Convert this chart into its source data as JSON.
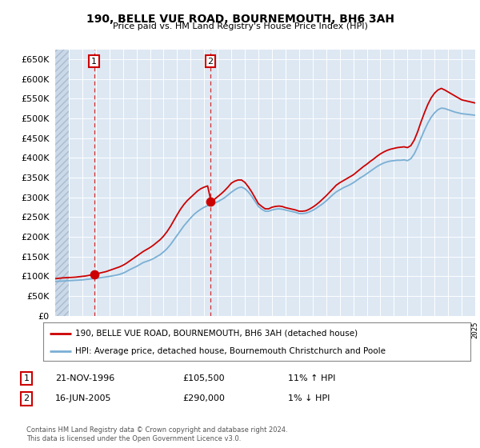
{
  "title": "190, BELLE VUE ROAD, BOURNEMOUTH, BH6 3AH",
  "subtitle": "Price paid vs. HM Land Registry's House Price Index (HPI)",
  "ylim": [
    0,
    675000
  ],
  "yticks": [
    0,
    50000,
    100000,
    150000,
    200000,
    250000,
    300000,
    350000,
    400000,
    450000,
    500000,
    550000,
    600000,
    650000
  ],
  "bg_color": "#dde8f3",
  "grid_color": "#ffffff",
  "red_line_color": "#cc0000",
  "blue_line_color": "#7aafd4",
  "sale1_year": 1996.88,
  "sale1_price": 105500,
  "sale1_label": "1",
  "sale1_date": "21-NOV-1996",
  "sale1_hpi": "11% ↑ HPI",
  "sale2_year": 2005.46,
  "sale2_price": 290000,
  "sale2_label": "2",
  "sale2_date": "16-JUN-2005",
  "sale2_hpi": "1% ↓ HPI",
  "legend1": "190, BELLE VUE ROAD, BOURNEMOUTH, BH6 3AH (detached house)",
  "legend2": "HPI: Average price, detached house, Bournemouth Christchurch and Poole",
  "footer": "Contains HM Land Registry data © Crown copyright and database right 2024.\nThis data is licensed under the Open Government Licence v3.0.",
  "hpi_years": [
    1994.0,
    1994.25,
    1994.5,
    1994.75,
    1995.0,
    1995.25,
    1995.5,
    1995.75,
    1996.0,
    1996.25,
    1996.5,
    1996.75,
    1997.0,
    1997.25,
    1997.5,
    1997.75,
    1998.0,
    1998.25,
    1998.5,
    1998.75,
    1999.0,
    1999.25,
    1999.5,
    1999.75,
    2000.0,
    2000.25,
    2000.5,
    2000.75,
    2001.0,
    2001.25,
    2001.5,
    2001.75,
    2002.0,
    2002.25,
    2002.5,
    2002.75,
    2003.0,
    2003.25,
    2003.5,
    2003.75,
    2004.0,
    2004.25,
    2004.5,
    2004.75,
    2005.0,
    2005.25,
    2005.5,
    2005.75,
    2006.0,
    2006.25,
    2006.5,
    2006.75,
    2007.0,
    2007.25,
    2007.5,
    2007.75,
    2008.0,
    2008.25,
    2008.5,
    2008.75,
    2009.0,
    2009.25,
    2009.5,
    2009.75,
    2010.0,
    2010.25,
    2010.5,
    2010.75,
    2011.0,
    2011.25,
    2011.5,
    2011.75,
    2012.0,
    2012.25,
    2012.5,
    2012.75,
    2013.0,
    2013.25,
    2013.5,
    2013.75,
    2014.0,
    2014.25,
    2014.5,
    2014.75,
    2015.0,
    2015.25,
    2015.5,
    2015.75,
    2016.0,
    2016.25,
    2016.5,
    2016.75,
    2017.0,
    2017.25,
    2017.5,
    2017.75,
    2018.0,
    2018.25,
    2018.5,
    2018.75,
    2019.0,
    2019.25,
    2019.5,
    2019.75,
    2020.0,
    2020.25,
    2020.5,
    2020.75,
    2021.0,
    2021.25,
    2021.5,
    2021.75,
    2022.0,
    2022.25,
    2022.5,
    2022.75,
    2023.0,
    2023.25,
    2023.5,
    2023.75,
    2024.0,
    2024.25,
    2024.5,
    2024.75,
    2025.0
  ],
  "hpi_values": [
    87000,
    87500,
    88000,
    88500,
    89000,
    89500,
    90000,
    90500,
    91000,
    92000,
    93000,
    94000,
    95000,
    96000,
    97500,
    98500,
    100000,
    101500,
    103000,
    105000,
    108000,
    112000,
    117000,
    121000,
    125000,
    130000,
    135000,
    138000,
    141000,
    145000,
    150000,
    155000,
    162000,
    170000,
    180000,
    192000,
    204000,
    216000,
    228000,
    238000,
    248000,
    257000,
    264000,
    270000,
    275000,
    279000,
    282000,
    285000,
    289000,
    294000,
    299000,
    306000,
    313000,
    319000,
    324000,
    326000,
    322000,
    314000,
    303000,
    290000,
    277000,
    270000,
    265000,
    265000,
    268000,
    270000,
    271000,
    270000,
    268000,
    266000,
    264000,
    262000,
    259000,
    259000,
    260000,
    263000,
    267000,
    272000,
    278000,
    284000,
    291000,
    299000,
    307000,
    314000,
    319000,
    324000,
    328000,
    332000,
    337000,
    343000,
    349000,
    354000,
    360000,
    366000,
    372000,
    378000,
    383000,
    387000,
    390000,
    392000,
    393000,
    394000,
    394000,
    395000,
    393000,
    398000,
    410000,
    428000,
    450000,
    470000,
    488000,
    503000,
    514000,
    522000,
    526000,
    525000,
    522000,
    519000,
    516000,
    514000,
    512000,
    511000,
    510000,
    509000,
    508000
  ],
  "red_years": [
    1994.0,
    1994.25,
    1994.5,
    1994.75,
    1995.0,
    1995.25,
    1995.5,
    1995.75,
    1996.0,
    1996.25,
    1996.5,
    1996.75,
    1997.0,
    1997.25,
    1997.5,
    1997.75,
    1998.0,
    1998.25,
    1998.5,
    1998.75,
    1999.0,
    1999.25,
    1999.5,
    1999.75,
    2000.0,
    2000.25,
    2000.5,
    2000.75,
    2001.0,
    2001.25,
    2001.5,
    2001.75,
    2002.0,
    2002.25,
    2002.5,
    2002.75,
    2003.0,
    2003.25,
    2003.5,
    2003.75,
    2004.0,
    2004.25,
    2004.5,
    2004.75,
    2005.0,
    2005.25,
    2005.5,
    2005.75,
    2006.0,
    2006.25,
    2006.5,
    2006.75,
    2007.0,
    2007.25,
    2007.5,
    2007.75,
    2008.0,
    2008.25,
    2008.5,
    2008.75,
    2009.0,
    2009.25,
    2009.5,
    2009.75,
    2010.0,
    2010.25,
    2010.5,
    2010.75,
    2011.0,
    2011.25,
    2011.5,
    2011.75,
    2012.0,
    2012.25,
    2012.5,
    2012.75,
    2013.0,
    2013.25,
    2013.5,
    2013.75,
    2014.0,
    2014.25,
    2014.5,
    2014.75,
    2015.0,
    2015.25,
    2015.5,
    2015.75,
    2016.0,
    2016.25,
    2016.5,
    2016.75,
    2017.0,
    2017.25,
    2017.5,
    2017.75,
    2018.0,
    2018.25,
    2018.5,
    2018.75,
    2019.0,
    2019.25,
    2019.5,
    2019.75,
    2020.0,
    2020.25,
    2020.5,
    2020.75,
    2021.0,
    2021.25,
    2021.5,
    2021.75,
    2022.0,
    2022.25,
    2022.5,
    2022.75,
    2023.0,
    2023.25,
    2023.5,
    2023.75,
    2024.0,
    2024.25,
    2024.5,
    2024.75,
    2025.0
  ],
  "red_values": [
    94000,
    95000,
    96000,
    96500,
    97000,
    97500,
    98000,
    99000,
    100000,
    101000,
    102500,
    104000,
    106000,
    108000,
    110000,
    112000,
    115000,
    118000,
    121000,
    124000,
    128000,
    133000,
    139000,
    145000,
    151000,
    157000,
    163000,
    168000,
    173000,
    179000,
    186000,
    193000,
    202000,
    213000,
    226000,
    241000,
    256000,
    270000,
    282000,
    292000,
    300000,
    308000,
    316000,
    322000,
    326000,
    329000,
    290000,
    295000,
    302000,
    309000,
    317000,
    326000,
    336000,
    341000,
    344000,
    344000,
    338000,
    327000,
    314000,
    299000,
    284000,
    277000,
    271000,
    271000,
    275000,
    277000,
    278000,
    277000,
    274000,
    272000,
    270000,
    268000,
    265000,
    265000,
    266000,
    270000,
    275000,
    281000,
    288000,
    296000,
    304000,
    313000,
    322000,
    331000,
    337000,
    342000,
    347000,
    352000,
    357000,
    364000,
    371000,
    378000,
    384000,
    391000,
    397000,
    404000,
    410000,
    415000,
    419000,
    422000,
    424000,
    426000,
    427000,
    428000,
    426000,
    431000,
    445000,
    466000,
    491000,
    514000,
    535000,
    552000,
    564000,
    572000,
    576000,
    572000,
    567000,
    562000,
    557000,
    552000,
    547000,
    545000,
    543000,
    541000,
    539000
  ],
  "xmin": 1994,
  "xmax": 2025
}
